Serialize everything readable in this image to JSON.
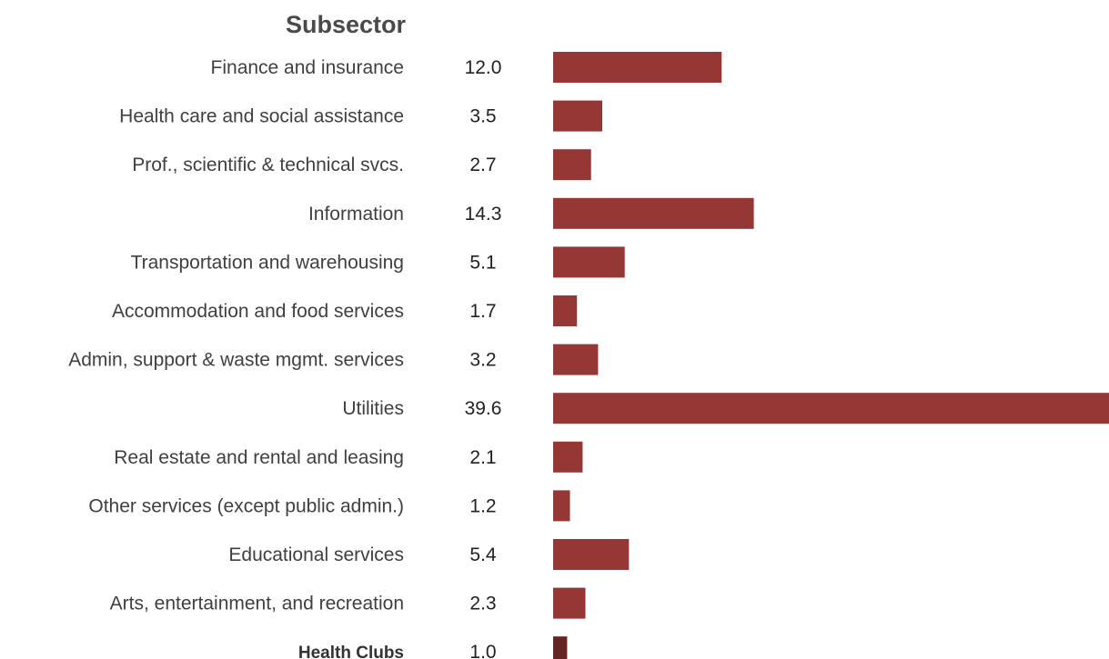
{
  "chart_data": {
    "type": "bar",
    "orientation": "horizontal",
    "category_header": "Subsector",
    "categories": [
      "Finance and insurance",
      "Health care and social assistance",
      "Prof., scientific & technical svcs.",
      "Information",
      "Transportation and warehousing",
      "Accommodation and food services",
      "Admin, support & waste mgmt. services",
      "Utilities",
      "Real estate and rental and leasing",
      "Other services (except public admin.)",
      "Educational services",
      "Arts, entertainment, and recreation",
      "Health Clubs"
    ],
    "values": [
      12.0,
      3.5,
      2.7,
      14.3,
      5.1,
      1.7,
      3.2,
      39.6,
      2.1,
      1.2,
      5.4,
      2.3,
      1.0
    ],
    "value_labels": [
      "12.0",
      "3.5",
      "2.7",
      "14.3",
      "5.1",
      "1.7",
      "3.2",
      "39.6",
      "2.1",
      "1.2",
      "5.4",
      "2.3",
      "1.0"
    ],
    "highlight_category": "Health Clubs",
    "colors": {
      "bar": "#953735",
      "highlight_bar": "#632423"
    },
    "xlim": [
      0,
      39.6
    ],
    "grid": false,
    "legend": "none"
  }
}
